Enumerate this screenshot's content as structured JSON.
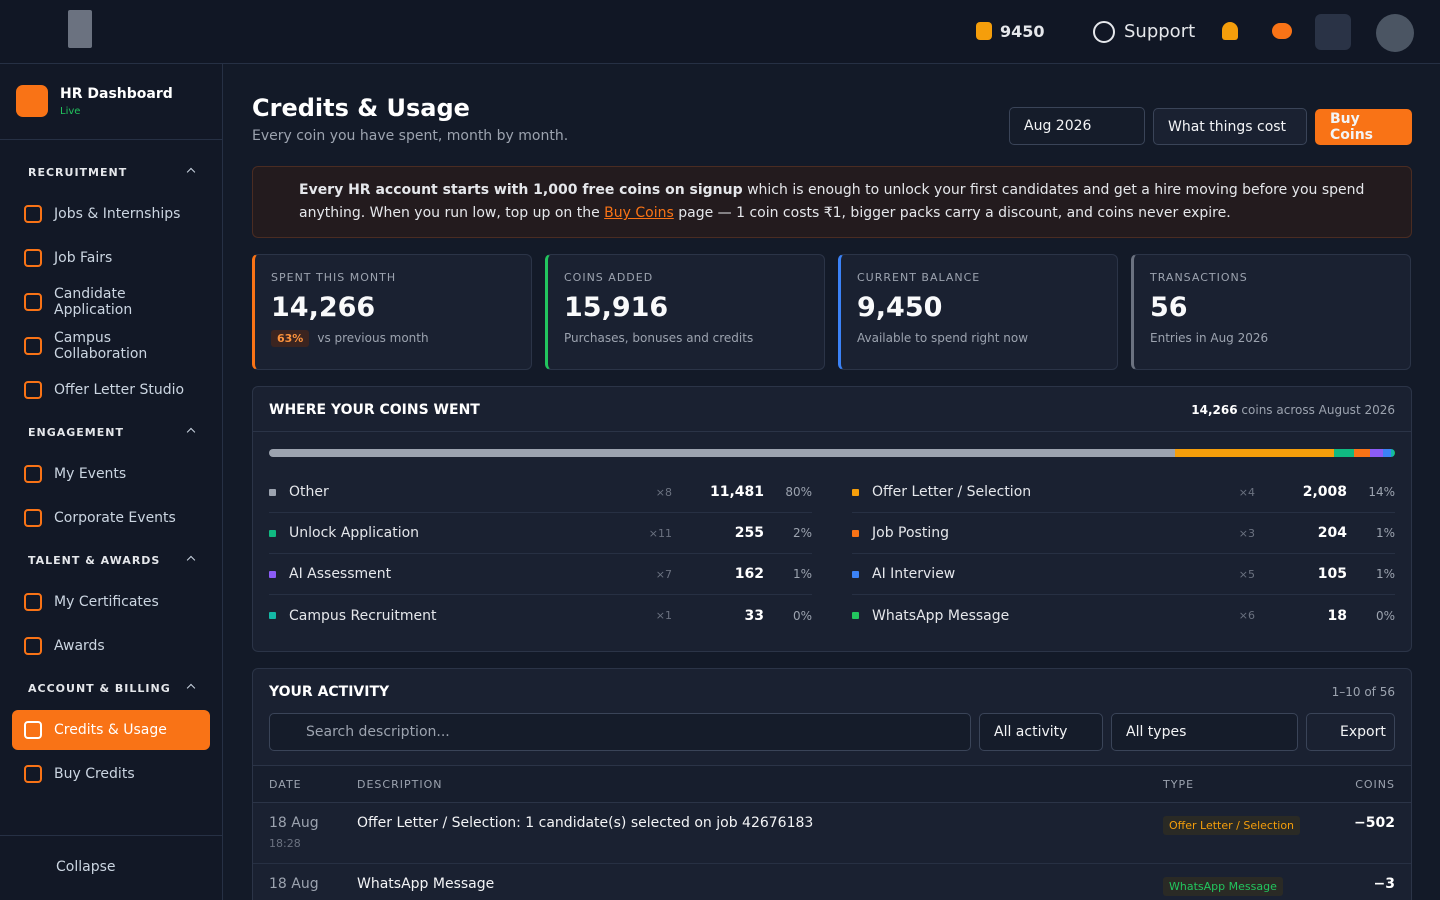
{
  "topbar": {
    "coins": "9450",
    "support": "Support"
  },
  "sidebar": {
    "app": {
      "title": "HR Dashboard",
      "status": "Live"
    },
    "sections": [
      {
        "title": "RECRUITMENT",
        "items": [
          "Jobs & Internships",
          "Job Fairs",
          "Candidate Application",
          "Campus Collaboration",
          "Offer Letter Studio"
        ]
      },
      {
        "title": "ENGAGEMENT",
        "items": [
          "My Events",
          "Corporate Events"
        ]
      },
      {
        "title": "TALENT & AWARDS",
        "items": [
          "My Certificates",
          "Awards"
        ]
      },
      {
        "title": "ACCOUNT & BILLING",
        "items": [
          "Credits & Usage",
          "Buy Credits"
        ]
      }
    ],
    "collapse": "Collapse"
  },
  "page": {
    "title": "Credits & Usage",
    "subtitle": "Every coin you have spent, month by month.",
    "month": "Aug 2026",
    "cost_button": "What things cost",
    "buy_button": "Buy Coins"
  },
  "notice": {
    "bold": "Every HR account starts with 1,000 free coins on signup",
    "text1": " which is enough to unlock your first candidates and get a hire moving before you spend anything. When you run low, top up on the ",
    "link": "Buy Coins",
    "text2": " page — 1 coin costs ₹1, bigger packs carry a discount, and coins never expire."
  },
  "stats": [
    {
      "label": "SPENT THIS MONTH",
      "value": "14,266",
      "change": "63%",
      "note": "vs previous month",
      "color": "#f97316"
    },
    {
      "label": "COINS ADDED",
      "value": "15,916",
      "note": "Purchases, bonuses and credits",
      "color": "#22c55e"
    },
    {
      "label": "CURRENT BALANCE",
      "value": "9,450",
      "note": "Available to spend right now",
      "color": "#3b82f6"
    },
    {
      "label": "TRANSACTIONS",
      "value": "56",
      "note": "Entries in Aug 2026",
      "color": "#6b7280"
    }
  ],
  "breakdown": {
    "title": "WHERE YOUR COINS WENT",
    "total": "14,266",
    "total_note": "coins across August 2026",
    "items": [
      {
        "name": "Other",
        "count": "×8",
        "coins": "11,481",
        "share": "80%",
        "color": "#9ca3af"
      },
      {
        "name": "Offer Letter / Selection",
        "count": "×4",
        "coins": "2,008",
        "share": "14%",
        "color": "#f59e0b"
      },
      {
        "name": "Unlock Application",
        "count": "×11",
        "coins": "255",
        "share": "2%",
        "color": "#10b981"
      },
      {
        "name": "Job Posting",
        "count": "×3",
        "coins": "204",
        "share": "1%",
        "color": "#f97316"
      },
      {
        "name": "AI Assessment",
        "count": "×7",
        "coins": "162",
        "share": "1%",
        "color": "#8b5cf6"
      },
      {
        "name": "AI Interview",
        "count": "×5",
        "coins": "105",
        "share": "1%",
        "color": "#3b82f6"
      },
      {
        "name": "Campus Recruitment",
        "count": "×1",
        "coins": "33",
        "share": "0%",
        "color": "#14b8a6"
      },
      {
        "name": "WhatsApp Message",
        "count": "×6",
        "coins": "18",
        "share": "0%",
        "color": "#22c55e"
      }
    ]
  },
  "activity": {
    "title": "YOUR ACTIVITY",
    "range": "1–10 of 56",
    "search": "Search description...",
    "filter1": "All activity",
    "filter2": "All types",
    "export": "Export",
    "columns": [
      "DATE",
      "DESCRIPTION",
      "TYPE",
      "COINS"
    ],
    "rows": [
      {
        "date": "18 Aug",
        "time": "18:28",
        "description": "Offer Letter / Selection: 1 candidate(s) selected on job 42676183",
        "type": "Offer Letter / Selection",
        "type_color": "#f59e0b",
        "coins": "−502"
      },
      {
        "date": "18 Aug",
        "description": "WhatsApp Message",
        "type": "WhatsApp Message",
        "type_color": "#22c55e",
        "coins": "−3"
      }
    ]
  }
}
